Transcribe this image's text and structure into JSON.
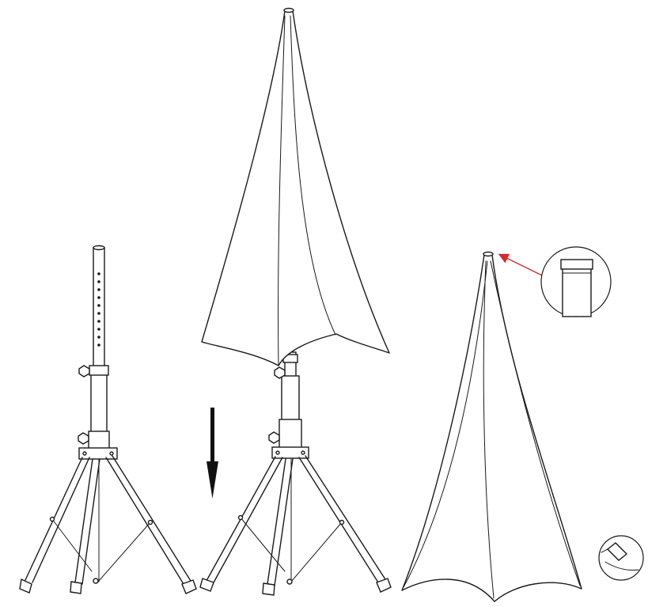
{
  "diagram": {
    "panels": [
      {
        "name": "bare-stand",
        "description_icon": "tripod-stand-icon"
      },
      {
        "name": "cover-being-lowered",
        "description_icon": "stand-with-cover-icon"
      },
      {
        "name": "fully-covered-stand",
        "description_icon": "covered-stand-icon"
      }
    ],
    "arrow_direction": "down",
    "colors": {
      "line": "#1a1a1a",
      "background": "#ffffff",
      "highlight_arrow": "#d42a2a"
    },
    "callouts": [
      {
        "name": "top-cap-detail",
        "icon": "pole-cap-zoom-icon"
      },
      {
        "name": "foot-detail",
        "icon": "leg-foot-zoom-icon"
      }
    ]
  }
}
